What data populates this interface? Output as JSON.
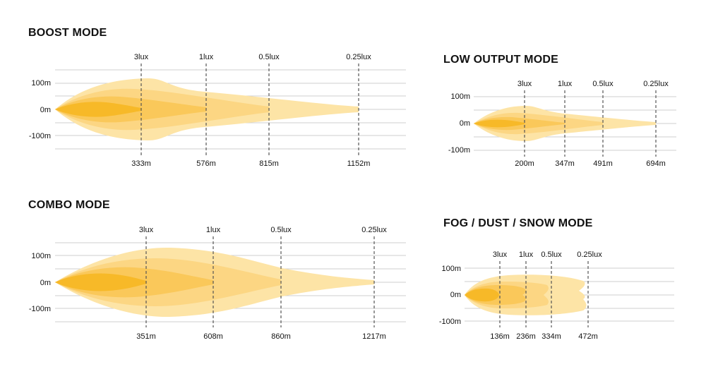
{
  "colors": {
    "zone_0_25lux": "#fde4a6",
    "zone_0_5lux": "#fcd683",
    "zone_1lux": "#fac85a",
    "zone_3lux": "#f7b928",
    "grid": "#cfcfcf",
    "marker": "#555555"
  },
  "panels": [
    {
      "id": "boost",
      "title": "BOOST MODE",
      "y_labels": [
        "100m",
        "0m",
        "-100m"
      ],
      "markers": [
        {
          "lux": "3lux",
          "distance": "333m"
        },
        {
          "lux": "1lux",
          "distance": "576m"
        },
        {
          "lux": "0.5lux",
          "distance": "815m"
        },
        {
          "lux": "0.25lux",
          "distance": "1152m"
        }
      ]
    },
    {
      "id": "low",
      "title": "LOW OUTPUT MODE",
      "y_labels": [
        "100m",
        "0m",
        "-100m"
      ],
      "markers": [
        {
          "lux": "3lux",
          "distance": "200m"
        },
        {
          "lux": "1lux",
          "distance": "347m"
        },
        {
          "lux": "0.5lux",
          "distance": "491m"
        },
        {
          "lux": "0.25lux",
          "distance": "694m"
        }
      ]
    },
    {
      "id": "combo",
      "title": "COMBO MODE",
      "y_labels": [
        "100m",
        "0m",
        "-100m"
      ],
      "markers": [
        {
          "lux": "3lux",
          "distance": "351m"
        },
        {
          "lux": "1lux",
          "distance": "608m"
        },
        {
          "lux": "0.5lux",
          "distance": "860m"
        },
        {
          "lux": "0.25lux",
          "distance": "1217m"
        }
      ]
    },
    {
      "id": "fog",
      "title": "FOG / DUST / SNOW MODE",
      "y_labels": [
        "100m",
        "0m",
        "-100m"
      ],
      "markers": [
        {
          "lux": "3lux",
          "distance": "136m"
        },
        {
          "lux": "1lux",
          "distance": "236m"
        },
        {
          "lux": "0.5lux",
          "distance": "334m"
        },
        {
          "lux": "0.25lux",
          "distance": "472m"
        }
      ]
    }
  ]
}
